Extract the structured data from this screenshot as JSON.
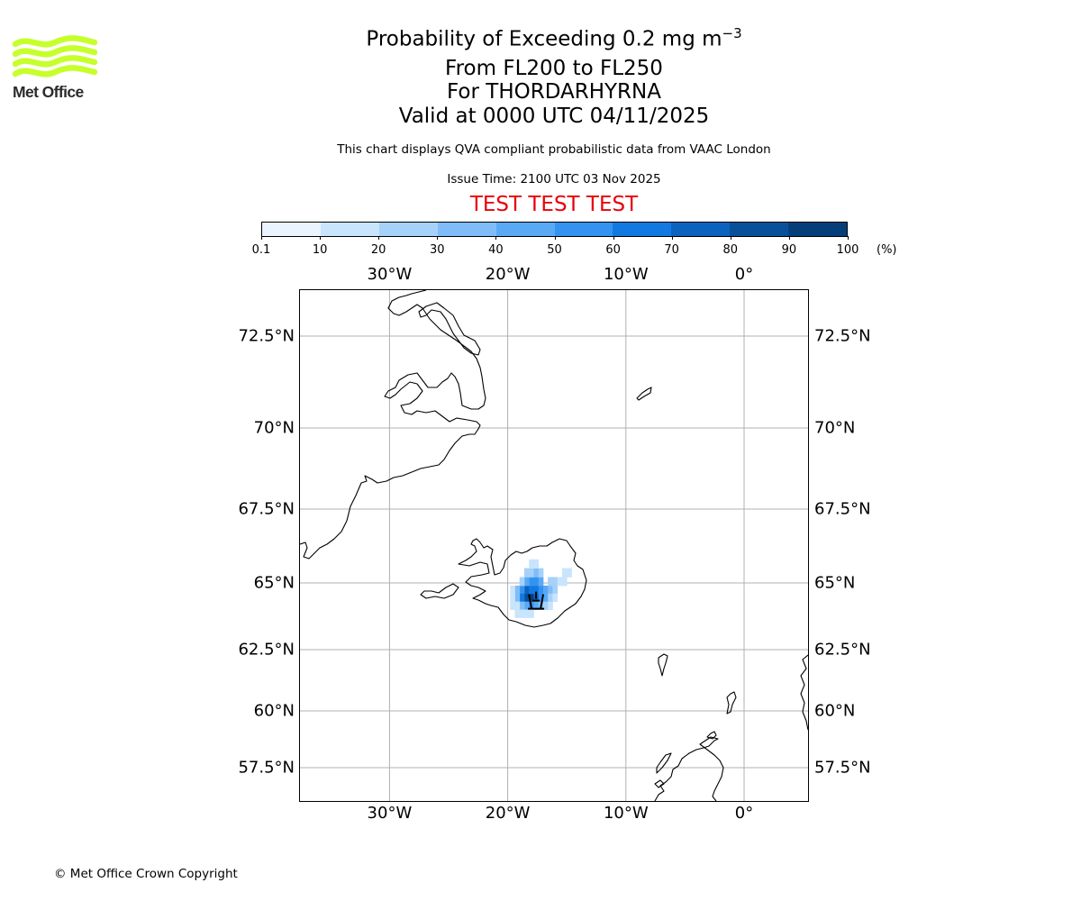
{
  "logo": {
    "text": "Met Office",
    "color": "#c6ff2b"
  },
  "header": {
    "title": "Probability of Exceeding 0.2 mg m",
    "title_exponent": "−3",
    "flight_levels": "From FL200 to FL250",
    "volcano": "For THORDARHYRNA",
    "valid_time": "Valid at 0000 UTC 04/11/2025",
    "description": "This chart displays QVA compliant probabilistic data from VAAC London",
    "issue_time": "Issue Time: 2100 UTC 03 Nov 2025",
    "test_banner": "TEST TEST TEST"
  },
  "colorbar": {
    "ticks": [
      "0.1",
      "10",
      "20",
      "30",
      "40",
      "50",
      "60",
      "70",
      "80",
      "90",
      "100"
    ],
    "unit": "(%)",
    "colors": [
      "#eaf4ff",
      "#c9e4fd",
      "#a5d1fb",
      "#80bdf8",
      "#5aa9f5",
      "#3493f1",
      "#1279e1",
      "#0c63be",
      "#08519a",
      "#053f79",
      "#032c58"
    ]
  },
  "map": {
    "lon_labels": [
      "30°W",
      "20°W",
      "10°W",
      "0°"
    ],
    "lat_labels": [
      "72.5°N",
      "70°N",
      "67.5°N",
      "65°N",
      "62.5°N",
      "60°N",
      "57.5°N"
    ],
    "gridline_color": "#b0b0b0",
    "coast_color": "#000000",
    "volcano": {
      "name": "Thordarhyrna",
      "lon": -17.6,
      "lat": 64.27
    },
    "probability_cells": [
      [
        -18.6,
        64.3,
        80
      ],
      [
        -18.2,
        64.3,
        90
      ],
      [
        -17.8,
        64.3,
        70
      ],
      [
        -18.6,
        64.6,
        70
      ],
      [
        -18.2,
        64.6,
        60
      ],
      [
        -17.8,
        64.6,
        60
      ],
      [
        -17.4,
        64.6,
        50
      ],
      [
        -19.0,
        64.6,
        50
      ],
      [
        -17.0,
        64.6,
        40
      ],
      [
        -19.0,
        64.3,
        60
      ],
      [
        -17.4,
        64.3,
        50
      ],
      [
        -17.0,
        64.3,
        40
      ],
      [
        -18.2,
        64.9,
        50
      ],
      [
        -17.8,
        64.9,
        50
      ],
      [
        -18.6,
        64.9,
        40
      ],
      [
        -17.4,
        64.9,
        40
      ],
      [
        -19.4,
        64.6,
        30
      ],
      [
        -16.6,
        64.6,
        30
      ],
      [
        -19.4,
        64.3,
        30
      ],
      [
        -16.6,
        64.3,
        20
      ],
      [
        -18.6,
        64.0,
        40
      ],
      [
        -18.2,
        64.0,
        50
      ],
      [
        -17.8,
        64.0,
        40
      ],
      [
        -17.4,
        64.0,
        30
      ],
      [
        -19.0,
        64.0,
        30
      ],
      [
        -18.2,
        65.2,
        20
      ],
      [
        -17.8,
        65.2,
        30
      ],
      [
        -17.4,
        65.2,
        20
      ],
      [
        -18.6,
        65.2,
        20
      ],
      [
        -19.0,
        64.9,
        20
      ],
      [
        -16.2,
        64.6,
        20
      ],
      [
        -16.2,
        64.9,
        20
      ],
      [
        -15.8,
        64.9,
        10
      ],
      [
        -15.4,
        64.9,
        10
      ],
      [
        -16.6,
        64.9,
        20
      ],
      [
        -19.8,
        64.6,
        10
      ],
      [
        -19.8,
        64.3,
        10
      ],
      [
        -19.4,
        64.0,
        10
      ],
      [
        -17.0,
        64.0,
        20
      ],
      [
        -16.6,
        64.0,
        10
      ],
      [
        -18.6,
        63.7,
        10
      ],
      [
        -19.0,
        63.7,
        10
      ],
      [
        -18.2,
        63.7,
        10
      ],
      [
        -17.8,
        65.5,
        10
      ],
      [
        -18.2,
        65.5,
        10
      ],
      [
        -19.4,
        63.7,
        10
      ],
      [
        -15.4,
        65.2,
        10
      ],
      [
        -15.0,
        65.2,
        10
      ],
      [
        -19.8,
        64.0,
        10
      ],
      [
        -16.2,
        64.3,
        10
      ]
    ]
  },
  "footer": {
    "copyright": "© Met Office Crown Copyright"
  }
}
